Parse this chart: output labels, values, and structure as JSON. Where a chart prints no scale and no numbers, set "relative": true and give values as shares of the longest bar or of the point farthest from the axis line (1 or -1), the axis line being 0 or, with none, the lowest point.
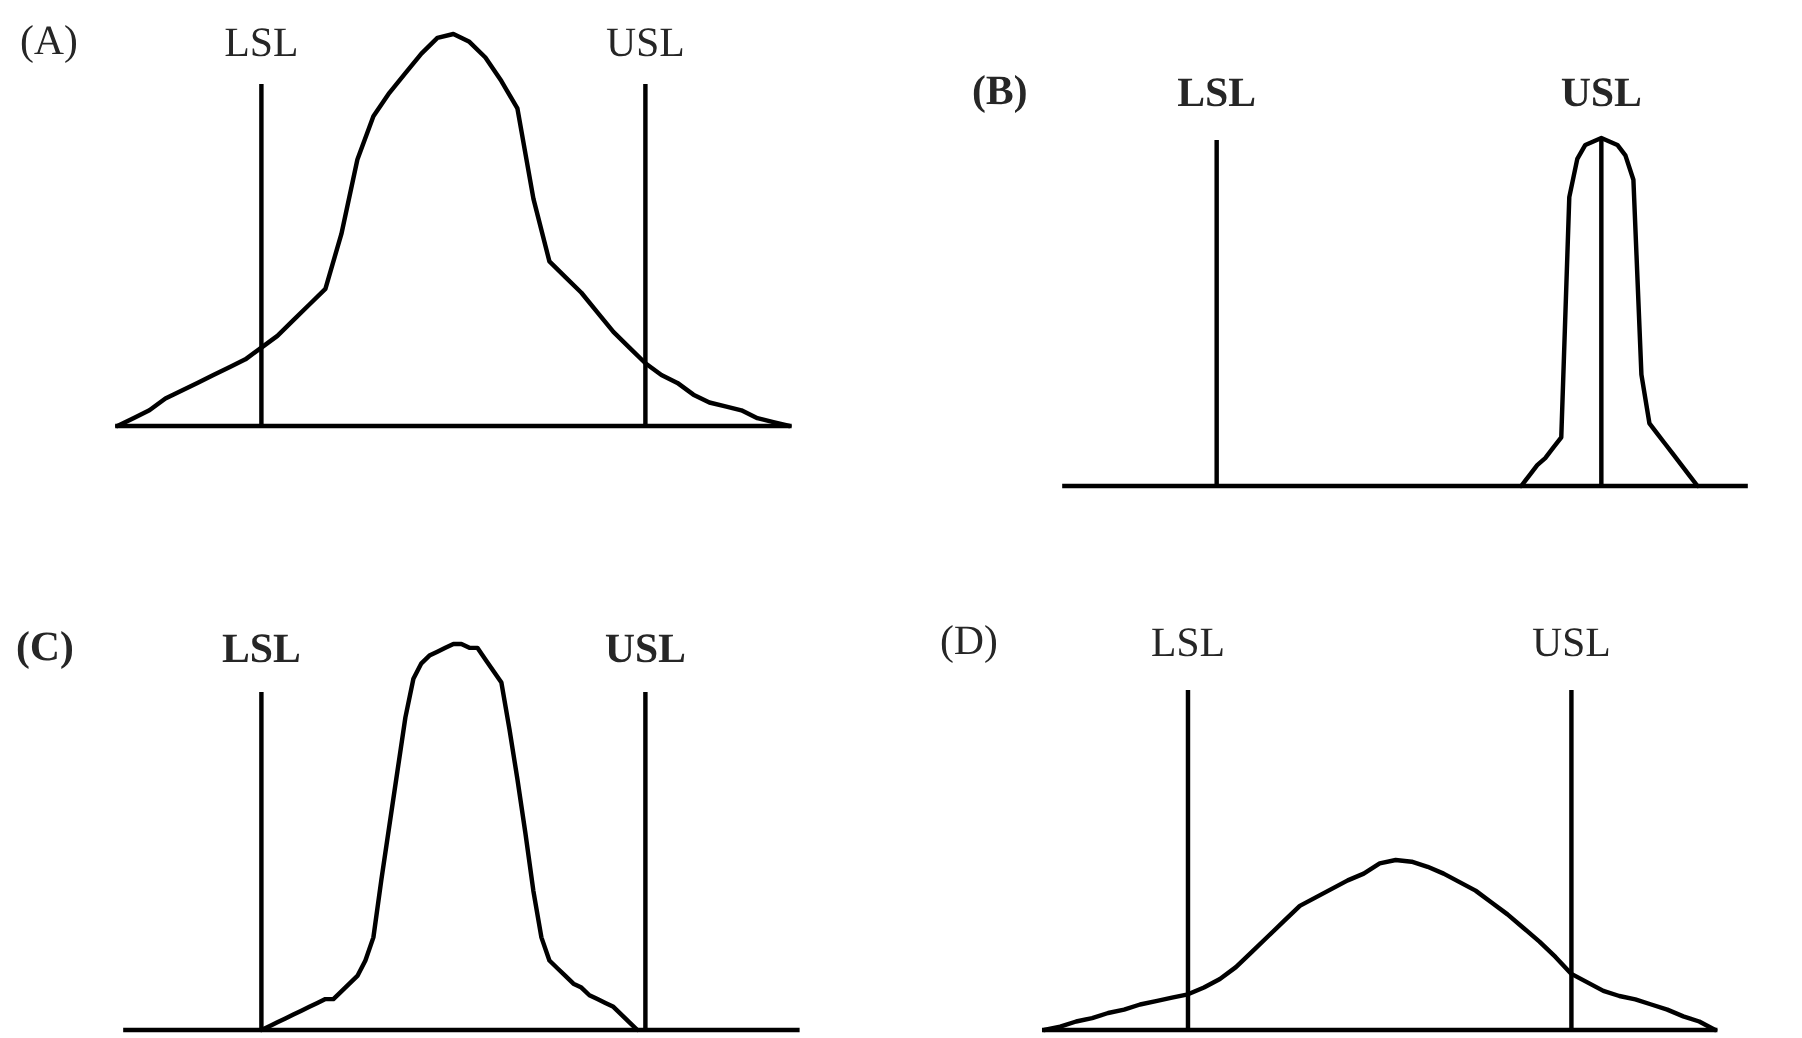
{
  "chart_data": [
    {
      "type": "line",
      "title": "(A)",
      "relative": true,
      "categories": [
        null,
        null,
        null,
        null,
        null,
        null,
        null,
        null,
        null,
        "LSL",
        null,
        null,
        null,
        null,
        null,
        null,
        null,
        null,
        null,
        null,
        null,
        null,
        null,
        null,
        null,
        null,
        null,
        null,
        null,
        null,
        null,
        null,
        null,
        "USL",
        null,
        null,
        null,
        null,
        null,
        null,
        null,
        null,
        null
      ],
      "series": [
        {
          "color": "#000000",
          "values": [
            0,
            0.02,
            0.04,
            0.07,
            0.09,
            0.11,
            0.13,
            0.15,
            0.17,
            0.2,
            0.23,
            0.27,
            0.31,
            0.35,
            0.49,
            0.68,
            0.79,
            0.85,
            0.9,
            0.95,
            0.99,
            1,
            0.98,
            0.94,
            0.88,
            0.81,
            0.58,
            0.42,
            0.38,
            0.34,
            0.29,
            0.24,
            0.2,
            0.16,
            0.13,
            0.11,
            0.08,
            0.06,
            0.05,
            0.04,
            0.02,
            0.01,
            0
          ]
        }
      ],
      "ref_lines": [
        {
          "axis": "x",
          "value": "LSL",
          "color": "#000000"
        },
        {
          "axis": "x",
          "value": "USL",
          "color": "#000000"
        }
      ]
    },
    {
      "type": "line",
      "title": "(B)",
      "relative": true,
      "categories": [
        null,
        null,
        null,
        null,
        null,
        null,
        null,
        null,
        null,
        null,
        null,
        null,
        null,
        null,
        null,
        null,
        null,
        null,
        null,
        "LSL",
        null,
        null,
        null,
        null,
        null,
        null,
        null,
        null,
        null,
        null,
        null,
        null,
        null,
        null,
        null,
        null,
        null,
        null,
        null,
        null,
        null,
        null,
        null,
        null,
        null,
        null,
        null,
        null,
        null,
        null,
        null,
        null,
        null,
        null,
        null,
        null,
        null,
        null,
        null,
        null,
        null,
        null,
        null,
        null,
        null,
        null,
        null,
        "USL",
        null,
        null,
        null,
        null,
        null,
        null,
        null,
        null,
        null,
        null,
        null,
        null,
        null,
        null,
        null,
        null,
        null,
        null
      ],
      "series": [
        {
          "color": "#000000",
          "values": [
            null,
            null,
            null,
            null,
            null,
            null,
            null,
            null,
            null,
            null,
            null,
            null,
            null,
            null,
            null,
            null,
            null,
            null,
            null,
            null,
            null,
            null,
            null,
            null,
            null,
            null,
            null,
            null,
            null,
            null,
            null,
            null,
            null,
            null,
            null,
            null,
            null,
            null,
            null,
            null,
            null,
            null,
            null,
            null,
            null,
            null,
            null,
            null,
            null,
            null,
            null,
            null,
            null,
            null,
            null,
            null,
            null,
            0,
            0.03,
            0.06,
            0.08,
            0.11,
            0.14,
            0.83,
            0.94,
            0.98,
            0.99,
            1,
            0.99,
            0.98,
            0.95,
            0.88,
            0.32,
            0.18,
            0.15,
            0.12,
            0.09,
            0.06,
            0.03,
            0,
            null,
            null,
            null,
            null,
            null,
            null
          ]
        }
      ],
      "ref_lines": [
        {
          "axis": "x",
          "value": "LSL",
          "color": "#000000"
        },
        {
          "axis": "x",
          "value": "USL",
          "color": "#000000"
        }
      ]
    },
    {
      "type": "line",
      "title": "(C)",
      "relative": true,
      "categories": [
        null,
        null,
        null,
        null,
        null,
        null,
        null,
        null,
        null,
        null,
        null,
        null,
        null,
        null,
        null,
        null,
        null,
        "LSL",
        null,
        null,
        null,
        null,
        null,
        null,
        null,
        null,
        null,
        null,
        null,
        null,
        null,
        null,
        null,
        null,
        null,
        null,
        null,
        null,
        null,
        null,
        null,
        null,
        null,
        null,
        null,
        null,
        null,
        null,
        null,
        null,
        null,
        null,
        null,
        null,
        null,
        null,
        null,
        null,
        null,
        null,
        null,
        null,
        null,
        null,
        null,
        "USL",
        null,
        null,
        null,
        null,
        null,
        null,
        null,
        null,
        null,
        null,
        null,
        null,
        null,
        null,
        null,
        null,
        null,
        null,
        null
      ],
      "series": [
        {
          "color": "#000000",
          "values": [
            null,
            null,
            null,
            null,
            null,
            null,
            null,
            null,
            null,
            null,
            null,
            null,
            null,
            null,
            null,
            null,
            null,
            0,
            0.01,
            0.02,
            0.03,
            0.04,
            0.05,
            0.06,
            0.07,
            0.08,
            0.08,
            0.1,
            0.12,
            0.14,
            0.18,
            0.24,
            0.39,
            0.53,
            0.67,
            0.81,
            0.91,
            0.95,
            0.97,
            0.98,
            0.99,
            1,
            1,
            0.99,
            0.99,
            0.96,
            0.93,
            0.9,
            0.78,
            0.65,
            0.51,
            0.36,
            0.24,
            0.18,
            0.16,
            0.14,
            0.12,
            0.11,
            0.09,
            0.08,
            0.07,
            0.06,
            0.04,
            0.02,
            0,
            null,
            null,
            null,
            null,
            null,
            null,
            null,
            null,
            null,
            null,
            null,
            null,
            null,
            null,
            null,
            null,
            null,
            null,
            null,
            null
          ]
        }
      ],
      "ref_lines": [
        {
          "axis": "x",
          "value": "LSL",
          "color": "#000000"
        },
        {
          "axis": "x",
          "value": "USL",
          "color": "#000000"
        }
      ]
    },
    {
      "type": "line",
      "title": "(D)",
      "relative": true,
      "categories": [
        null,
        null,
        null,
        null,
        null,
        null,
        null,
        null,
        null,
        "LSL",
        null,
        null,
        null,
        null,
        null,
        null,
        null,
        null,
        null,
        null,
        null,
        null,
        null,
        null,
        null,
        null,
        null,
        null,
        null,
        null,
        null,
        null,
        null,
        "USL",
        null,
        null,
        null,
        null,
        null,
        null,
        null,
        null,
        null
      ],
      "series": [
        {
          "color": "#000000",
          "values": [
            0,
            0.02,
            0.05,
            0.07,
            0.1,
            0.12,
            0.15,
            0.17,
            0.19,
            0.21,
            0.25,
            0.3,
            0.37,
            0.46,
            0.55,
            0.64,
            0.73,
            0.78,
            0.83,
            0.88,
            0.92,
            0.98,
            1,
            0.99,
            0.96,
            0.92,
            0.87,
            0.82,
            0.75,
            0.68,
            0.6,
            0.52,
            0.43,
            0.33,
            0.28,
            0.23,
            0.2,
            0.18,
            0.15,
            0.12,
            0.08,
            0.05,
            0
          ]
        }
      ],
      "ref_lines": [
        {
          "axis": "x",
          "value": "LSL",
          "color": "#000000"
        },
        {
          "axis": "x",
          "value": "USL",
          "color": "#000000"
        }
      ]
    }
  ]
}
